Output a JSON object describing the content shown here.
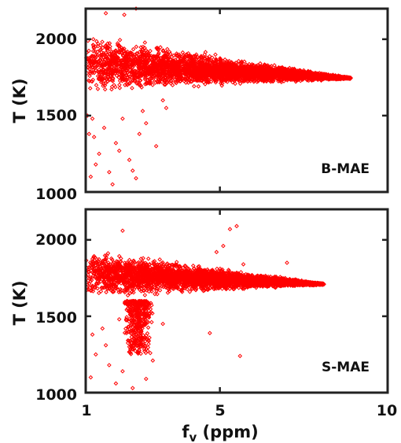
{
  "chart_data": [
    {
      "type": "scatter",
      "panel_label": "B-MAE",
      "ylabel": "T (K)",
      "xlabel": "",
      "xlim": [
        1,
        10
      ],
      "ylim": [
        1000,
        2200
      ],
      "yticks": [
        1000,
        1500,
        2000
      ],
      "xticks": [
        1,
        5,
        10
      ],
      "x_tick_labels_shown": false,
      "marker": "diamond",
      "color": "#ff0000",
      "band": {
        "x_start": 1.0,
        "x_end": 8.9,
        "upper_start": 2060,
        "lower_start": 1620,
        "center_end": 1745,
        "density_peak_x": 2.0
      },
      "outliers": [
        [
          1.15,
          1100
        ],
        [
          1.25,
          1360
        ],
        [
          1.4,
          1250
        ],
        [
          1.55,
          1420
        ],
        [
          1.7,
          1130
        ],
        [
          1.9,
          1320
        ],
        [
          2.1,
          1480
        ],
        [
          2.3,
          1210
        ],
        [
          2.6,
          1380
        ],
        [
          2.8,
          1450
        ],
        [
          3.1,
          1300
        ],
        [
          3.4,
          1550
        ],
        [
          1.3,
          1180
        ],
        [
          1.8,
          1050
        ],
        [
          2.5,
          1090
        ],
        [
          1.2,
          1480
        ],
        [
          2.0,
          1270
        ],
        [
          2.7,
          1530
        ],
        [
          3.3,
          1600
        ],
        [
          1.6,
          2170
        ],
        [
          2.5,
          2200
        ],
        [
          2.15,
          2160
        ],
        [
          1.05,
          1500
        ],
        [
          1.1,
          1380
        ],
        [
          2.4,
          1140
        ]
      ]
    },
    {
      "type": "scatter",
      "panel_label": "S-MAE",
      "ylabel": "T (K)",
      "xlabel": "f_v (ppm)",
      "xlim": [
        1,
        10
      ],
      "ylim": [
        1000,
        2200
      ],
      "yticks": [
        1000,
        1500,
        2000
      ],
      "xticks": [
        1,
        5,
        10
      ],
      "xtick_labels": [
        "1",
        "5",
        "10"
      ],
      "marker": "diamond",
      "color": "#ff0000",
      "band": {
        "x_start": 1.0,
        "x_end": 8.1,
        "upper_start": 1960,
        "lower_start": 1600,
        "center_end": 1710,
        "density_peak_x": 2.0
      },
      "plume": {
        "x_center": 2.55,
        "x_spread": 0.45,
        "y_top": 1600,
        "y_bottom": 1250
      },
      "outliers": [
        [
          1.15,
          1100
        ],
        [
          1.3,
          1250
        ],
        [
          1.5,
          1420
        ],
        [
          1.7,
          1180
        ],
        [
          1.9,
          1060
        ],
        [
          2.1,
          1140
        ],
        [
          2.3,
          1300
        ],
        [
          2.0,
          1480
        ],
        [
          2.8,
          1090
        ],
        [
          3.0,
          1210
        ],
        [
          3.3,
          1450
        ],
        [
          4.7,
          1390
        ],
        [
          5.6,
          1240
        ],
        [
          2.4,
          1030
        ],
        [
          5.3,
          2070
        ],
        [
          5.5,
          2090
        ],
        [
          5.1,
          1960
        ],
        [
          5.7,
          1840
        ],
        [
          4.9,
          1920
        ],
        [
          2.1,
          2060
        ],
        [
          7.0,
          1850
        ],
        [
          1.2,
          1380
        ],
        [
          2.9,
          1360
        ],
        [
          1.6,
          1310
        ]
      ]
    }
  ]
}
